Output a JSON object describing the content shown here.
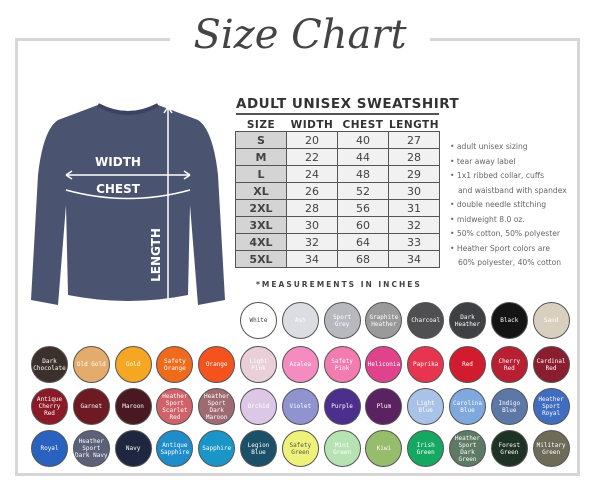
{
  "title": "Size Chart",
  "table": {
    "title": "ADULT UNISEX SWEATSHIRT",
    "headers": [
      "SIZE",
      "WIDTH",
      "CHEST",
      "LENGTH"
    ],
    "rows": [
      [
        "S",
        "20",
        "40",
        "27"
      ],
      [
        "M",
        "22",
        "44",
        "28"
      ],
      [
        "L",
        "24",
        "48",
        "29"
      ],
      [
        "XL",
        "26",
        "52",
        "30"
      ],
      [
        "2XL",
        "28",
        "56",
        "31"
      ],
      [
        "3XL",
        "30",
        "60",
        "32"
      ],
      [
        "4XL",
        "32",
        "64",
        "33"
      ],
      [
        "5XL",
        "34",
        "68",
        "34"
      ]
    ],
    "note": "*MEASUREMENTS IN INCHES"
  },
  "diagram": {
    "width": "WIDTH",
    "chest": "CHEST",
    "length": "LENGTH",
    "shirt_color": "#4a5470"
  },
  "bullets": [
    "• adult unisex sizing",
    "• tear away label",
    "• 1x1 ribbed collar, cuffs",
    "and waistband with spandex",
    "• double needle stitching",
    "• midweight 8.0 oz.",
    "• 50% cotton, 50% polyester",
    "• Heather Sport colors are",
    "60% polyester, 40% cotton"
  ],
  "colors": [
    [
      [
        "White",
        "#ffffff",
        "#444"
      ],
      [
        "Ash",
        "#dcdde2",
        "#fff"
      ],
      [
        "Sport Grey",
        "#b8b9bf",
        "#fff"
      ],
      [
        "Graphite Heather",
        "#9a9a9a",
        "#fff"
      ],
      [
        "Charcoal",
        "#4f4f52",
        "#fff"
      ],
      [
        "Dark Heather",
        "#3f4043",
        "#fff"
      ],
      [
        "Black",
        "#141414",
        "#fff"
      ],
      [
        "Sand",
        "#d9cfbf",
        "#fff"
      ]
    ],
    [
      [
        "Dark Chocolate",
        "#3c302c",
        "#fff"
      ],
      [
        "Old Gold",
        "#e3ac6c",
        "#fff"
      ],
      [
        "Gold",
        "#f5a623",
        "#fff"
      ],
      [
        "Safety Orange",
        "#f06a1c",
        "#fff"
      ],
      [
        "Orange",
        "#f5531e",
        "#fff"
      ],
      [
        "Light Pink",
        "#e8cfd8",
        "#fff"
      ],
      [
        "Azalea",
        "#f58cc0",
        "#fff"
      ],
      [
        "Safety Pink",
        "#f27bb0",
        "#fff"
      ],
      [
        "Heliconia",
        "#e0438c",
        "#fff"
      ],
      [
        "Paprika",
        "#e8354f",
        "#fff"
      ],
      [
        "Red",
        "#d01c2e",
        "#fff"
      ],
      [
        "Cherry Red",
        "#b81f33",
        "#fff"
      ],
      [
        "Cardinal Red",
        "#8a1d2e",
        "#fff"
      ]
    ],
    [
      [
        "Antique Cherry Red",
        "#8c1a26",
        "#fff"
      ],
      [
        "Garnet",
        "#6e1a22",
        "#fff"
      ],
      [
        "Maroon",
        "#4a1820",
        "#fff"
      ],
      [
        "Heather Sport Scarlet Red",
        "#d2626a",
        "#fff"
      ],
      [
        "Heather Sport Dark Maroon",
        "#9e6b72",
        "#fff"
      ],
      [
        "Orchid",
        "#dcc8e6",
        "#fff"
      ],
      [
        "Violet",
        "#8f93cf",
        "#fff"
      ],
      [
        "Purple",
        "#4c2f8c",
        "#fff"
      ],
      [
        "Plum",
        "#5a2260",
        "#fff"
      ],
      [
        "Light Blue",
        "#a9c3e8",
        "#fff"
      ],
      [
        "Carolina Blue",
        "#7fa8dd",
        "#fff"
      ],
      [
        "Indigo Blue",
        "#5d78a6",
        "#fff"
      ],
      [
        "Heather Sport Royal",
        "#3f6dbf",
        "#fff"
      ]
    ],
    [
      [
        "Royal",
        "#2a62c0",
        "#fff"
      ],
      [
        "Heather Sport Dark Navy",
        "#5b6178",
        "#fff"
      ],
      [
        "Navy",
        "#1f2740",
        "#fff"
      ],
      [
        "Antique Sapphire",
        "#1f8dc9",
        "#fff"
      ],
      [
        "Sapphire",
        "#1a95c8",
        "#fff"
      ],
      [
        "Legion Blue",
        "#1a5068",
        "#fff"
      ],
      [
        "Safety Green",
        "#eef27a",
        "#555"
      ],
      [
        "Mint Green",
        "#b7e3b4",
        "#fff"
      ],
      [
        "Kiwi",
        "#95bd6b",
        "#fff"
      ],
      [
        "Irish Green",
        "#16a860",
        "#fff"
      ],
      [
        "Heather Sport Dark Green",
        "#5d7a64",
        "#fff"
      ],
      [
        "Forest Green",
        "#1f3325",
        "#fff"
      ],
      [
        "Military Green",
        "#6e6c58",
        "#fff"
      ]
    ]
  ]
}
